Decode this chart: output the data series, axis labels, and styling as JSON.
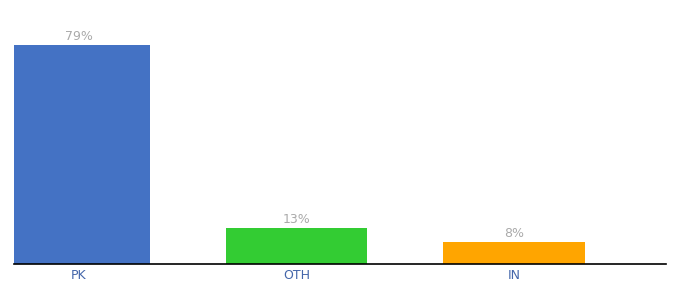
{
  "categories": [
    "PK",
    "OTH",
    "IN"
  ],
  "values": [
    79,
    13,
    8
  ],
  "bar_colors": [
    "#4472C4",
    "#33CC33",
    "#FFA500"
  ],
  "labels": [
    "79%",
    "13%",
    "8%"
  ],
  "background_color": "#ffffff",
  "label_color": "#aaaaaa",
  "axis_line_color": "#000000",
  "bar_width": 0.65,
  "ylim": [
    0,
    90
  ],
  "xlim": [
    -0.3,
    2.7
  ],
  "figsize": [
    6.8,
    3.0
  ],
  "dpi": 100,
  "label_fontsize": 9,
  "tick_fontsize": 9,
  "tick_color": "#4466aa"
}
